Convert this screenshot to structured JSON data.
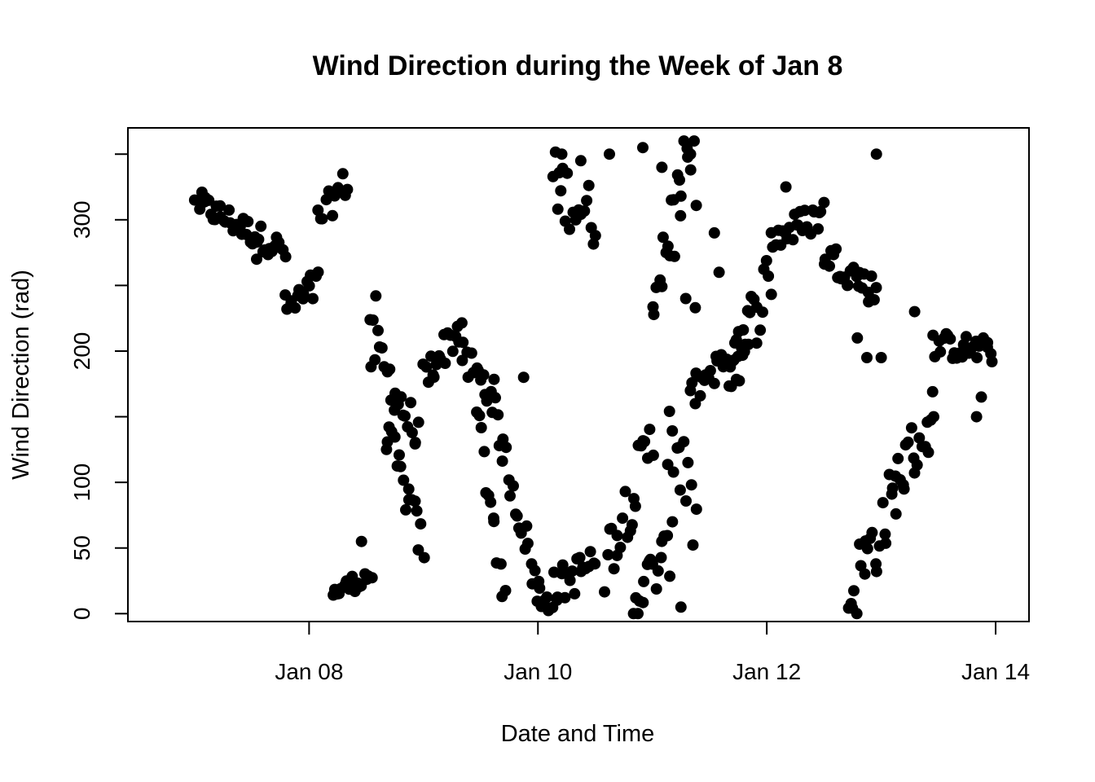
{
  "chart_data": {
    "type": "scatter",
    "title": "Wind Direction during the Week of Jan 8",
    "xlabel": "Date and Time",
    "ylabel": "Wind Direction (rad)",
    "x_unit": "date",
    "xlim": [
      "2018-01-06 10:00",
      "2018-01-14 07:00"
    ],
    "ylim": [
      -6,
      370
    ],
    "x_ticks": [
      {
        "value": "2018-01-08 00:00",
        "label": "Jan 08"
      },
      {
        "value": "2018-01-10 00:00",
        "label": "Jan 10"
      },
      {
        "value": "2018-01-12 00:00",
        "label": "Jan 12"
      },
      {
        "value": "2018-01-14 00:00",
        "label": "Jan 14"
      }
    ],
    "y_ticks": [
      {
        "value": 0,
        "label": "0"
      },
      {
        "value": 50,
        "label": "50"
      },
      {
        "value": 100,
        "label": "100"
      },
      {
        "value": 150,
        "label": ""
      },
      {
        "value": 200,
        "label": "200"
      },
      {
        "value": 250,
        "label": ""
      },
      {
        "value": 300,
        "label": "300"
      },
      {
        "value": 350,
        "label": ""
      }
    ],
    "grid": false,
    "legend": "none",
    "marker_color": "#000000",
    "segments": [
      {
        "from": "2018-01-07 01:00",
        "to": "2018-01-07 19:00",
        "y": [
          312,
          276
        ],
        "spread": 10
      },
      {
        "from": "2018-01-07 19:00",
        "to": "2018-01-08 02:00",
        "y": [
          230,
          250
        ],
        "spread": 14
      },
      {
        "from": "2018-01-08 02:00",
        "to": "2018-01-08 08:00",
        "y": [
          300,
          330
        ],
        "spread": 12
      },
      {
        "from": "2018-01-08 05:00",
        "to": "2018-01-08 13:00",
        "y": [
          15,
          30
        ],
        "spread": 7
      },
      {
        "from": "2018-01-08 13:00",
        "to": "2018-01-08 23:00",
        "y": [
          210,
          130
        ],
        "spread": 18
      },
      {
        "from": "2018-01-08 16:00",
        "to": "2018-01-09 00:00",
        "y": [
          140,
          50
        ],
        "spread": 16
      },
      {
        "from": "2018-01-09 00:00",
        "to": "2018-01-09 08:00",
        "y": [
          180,
          220
        ],
        "spread": 14
      },
      {
        "from": "2018-01-09 08:00",
        "to": "2018-01-09 15:00",
        "y": [
          195,
          165
        ],
        "spread": 14
      },
      {
        "from": "2018-01-09 11:00",
        "to": "2018-01-09 17:00",
        "y": [
          150,
          20
        ],
        "spread": 20
      },
      {
        "from": "2018-01-09 15:00",
        "to": "2018-01-10 00:00",
        "y": [
          150,
          20
        ],
        "spread": 15
      },
      {
        "from": "2018-01-10 00:00",
        "to": "2018-01-10 12:00",
        "y": [
          10,
          40
        ],
        "spread": 15
      },
      {
        "from": "2018-01-10 03:00",
        "to": "2018-01-10 12:00",
        "y": [
          330,
          300
        ],
        "spread": 25
      },
      {
        "from": "2018-01-10 14:00",
        "to": "2018-01-11 00:00",
        "y": [
          40,
          130
        ],
        "spread": 25
      },
      {
        "from": "2018-01-10 20:00",
        "to": "2018-01-11 04:00",
        "y": [
          10,
          50
        ],
        "spread": 20
      },
      {
        "from": "2018-01-11 00:00",
        "to": "2018-01-11 09:00",
        "y": [
          250,
          350
        ],
        "spread": 40
      },
      {
        "from": "2018-01-11 03:00",
        "to": "2018-01-11 09:00",
        "y": [
          140,
          70
        ],
        "spread": 35
      },
      {
        "from": "2018-01-11 08:00",
        "to": "2018-01-11 20:00",
        "y": [
          170,
          210
        ],
        "spread": 12
      },
      {
        "from": "2018-01-11 16:00",
        "to": "2018-01-12 01:00",
        "y": [
          180,
          260
        ],
        "spread": 25
      },
      {
        "from": "2018-01-12 01:00",
        "to": "2018-01-12 12:00",
        "y": [
          285,
          305
        ],
        "spread": 12
      },
      {
        "from": "2018-01-12 12:00",
        "to": "2018-01-12 23:00",
        "y": [
          275,
          245
        ],
        "spread": 12
      },
      {
        "from": "2018-01-12 17:00",
        "to": "2018-01-13 03:00",
        "y": [
          10,
          90
        ],
        "spread": 30
      },
      {
        "from": "2018-01-13 03:00",
        "to": "2018-01-13 11:00",
        "y": [
          100,
          150
        ],
        "spread": 25
      },
      {
        "from": "2018-01-13 11:00",
        "to": "2018-01-13 23:00",
        "y": [
          205,
          200
        ],
        "spread": 10
      }
    ],
    "extra_points": [
      {
        "x": "2018-01-07 00:00",
        "y": 315
      },
      {
        "x": "2018-01-07 13:00",
        "y": 270
      },
      {
        "x": "2018-01-08 11:00",
        "y": 55
      },
      {
        "x": "2018-01-08 14:00",
        "y": 242
      },
      {
        "x": "2018-01-08 13:00",
        "y": 188
      },
      {
        "x": "2018-01-09 21:00",
        "y": 180
      },
      {
        "x": "2018-01-10 05:00",
        "y": 350
      },
      {
        "x": "2018-01-10 09:00",
        "y": 345
      },
      {
        "x": "2018-01-10 15:00",
        "y": 350
      },
      {
        "x": "2018-01-10 22:00",
        "y": 355
      },
      {
        "x": "2018-01-11 02:00",
        "y": 340
      },
      {
        "x": "2018-01-11 04:00",
        "y": 315
      },
      {
        "x": "2018-01-11 08:00",
        "y": 350
      },
      {
        "x": "2018-01-11 06:00",
        "y": 5
      },
      {
        "x": "2018-01-11 06:00",
        "y": 318
      },
      {
        "x": "2018-01-11 07:00",
        "y": 240
      },
      {
        "x": "2018-01-11 09:00",
        "y": 233
      },
      {
        "x": "2018-01-11 09:00",
        "y": 160
      },
      {
        "x": "2018-01-11 13:00",
        "y": 290
      },
      {
        "x": "2018-01-11 14:00",
        "y": 260
      },
      {
        "x": "2018-01-12 04:00",
        "y": 325
      },
      {
        "x": "2018-01-12 19:00",
        "y": 210
      },
      {
        "x": "2018-01-12 21:00",
        "y": 195
      },
      {
        "x": "2018-01-12 23:00",
        "y": 350
      },
      {
        "x": "2018-01-13 00:00",
        "y": 195
      },
      {
        "x": "2018-01-13 07:00",
        "y": 230
      },
      {
        "x": "2018-01-13 11:00",
        "y": 150
      },
      {
        "x": "2018-01-13 18:00",
        "y": 200
      },
      {
        "x": "2018-01-13 21:00",
        "y": 165
      },
      {
        "x": "2018-01-13 20:00",
        "y": 150
      },
      {
        "x": "2018-01-13 23:00",
        "y": 198
      }
    ]
  }
}
